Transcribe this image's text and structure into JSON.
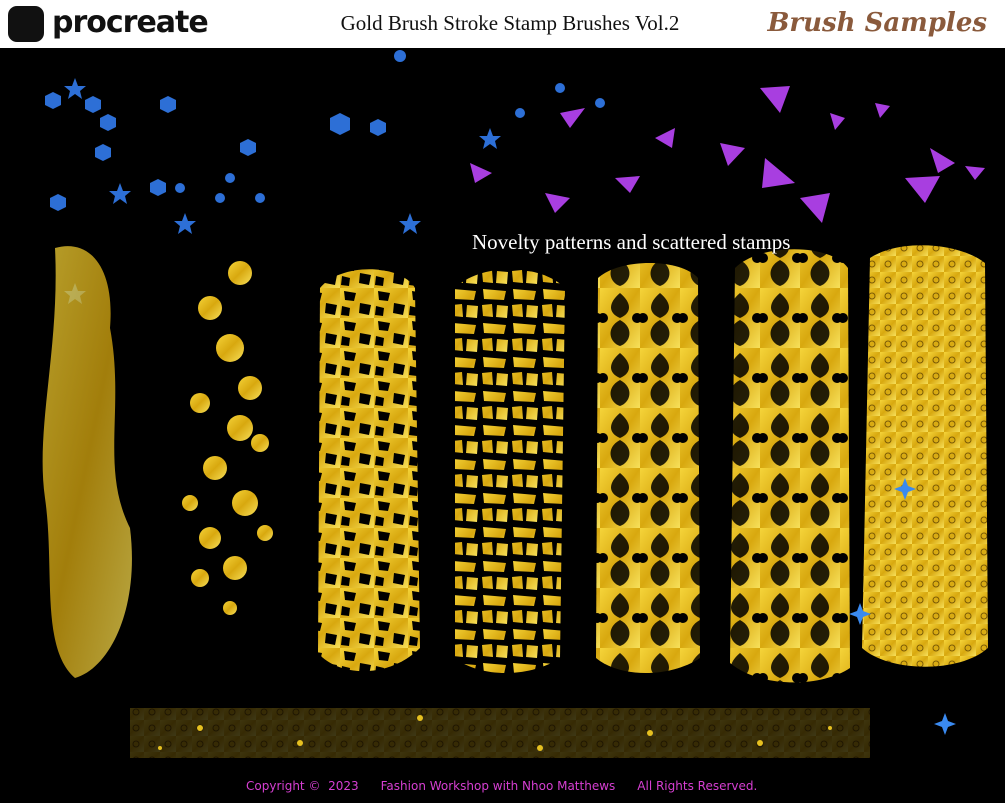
{
  "header": {
    "logo": "procreate",
    "title": "Gold Brush Stroke Stamp Brushes Vol.2",
    "badge": "Brush Samples"
  },
  "canvas": {
    "caption": "Novelty patterns and scattered stamps"
  },
  "footer": {
    "copyright": "Copyright ©  2023",
    "author": "Fashion Workshop with Nhoo Matthews",
    "rights": "All Rights Reserved."
  }
}
